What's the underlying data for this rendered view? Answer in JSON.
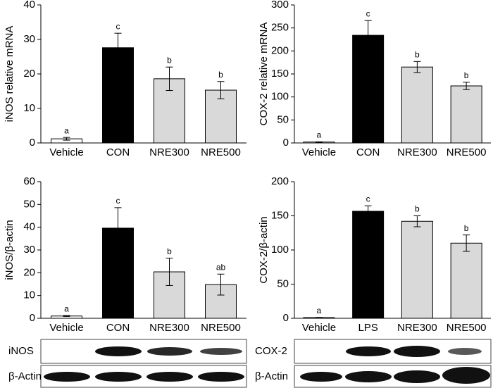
{
  "chart_data": [
    {
      "type": "bar",
      "ylabel": "iNOS relative mRNA",
      "categories": [
        "Vehicle",
        "CON",
        "NRE300",
        "NRE500"
      ],
      "values": [
        1.2,
        27.6,
        18.6,
        15.3
      ],
      "errors": [
        0.4,
        4.2,
        3.4,
        2.5
      ],
      "significance_labels": [
        "a",
        "c",
        "b",
        "b"
      ],
      "colors": [
        "#ffffff",
        "#000000",
        "#d9d9d9",
        "#d9d9d9"
      ],
      "ylim": [
        0,
        40
      ],
      "yticks": [
        0,
        10,
        20,
        30,
        40
      ]
    },
    {
      "type": "bar",
      "ylabel": "COX-2 relative mRNA",
      "categories": [
        "Vehicle",
        "CON",
        "NRE300",
        "NRE500"
      ],
      "values": [
        2,
        234,
        165,
        124
      ],
      "errors": [
        0.5,
        32,
        12,
        8
      ],
      "significance_labels": [
        "a",
        "c",
        "b",
        "b"
      ],
      "colors": [
        "#ffffff",
        "#000000",
        "#d9d9d9",
        "#d9d9d9"
      ],
      "ylim": [
        0,
        300
      ],
      "yticks": [
        0,
        50,
        100,
        150,
        200,
        250,
        300
      ]
    },
    {
      "type": "bar",
      "ylabel": "iNOS/β-actin",
      "categories": [
        "Vehicle",
        "CON",
        "NRE300",
        "NRE500"
      ],
      "values": [
        1,
        39.6,
        20.4,
        14.8
      ],
      "errors": [
        0.2,
        9,
        6,
        4.6
      ],
      "significance_labels": [
        "a",
        "c",
        "b",
        "ab"
      ],
      "colors": [
        "#ffffff",
        "#000000",
        "#d9d9d9",
        "#d9d9d9"
      ],
      "ylim": [
        0,
        60
      ],
      "yticks": [
        0,
        10,
        20,
        30,
        40,
        50,
        60
      ]
    },
    {
      "type": "bar",
      "ylabel": "COX-2/β-actin",
      "categories": [
        "Vehicle",
        "LPS",
        "NRE300",
        "NRE500"
      ],
      "values": [
        1,
        156.7,
        142,
        110
      ],
      "errors": [
        0.3,
        8,
        8,
        12
      ],
      "significance_labels": [
        "a",
        "c",
        "b",
        "b"
      ],
      "colors": [
        "#ffffff",
        "#000000",
        "#d9d9d9",
        "#d9d9d9"
      ],
      "ylim": [
        0,
        200
      ],
      "yticks": [
        0,
        50,
        100,
        150,
        200
      ]
    }
  ],
  "blots": [
    {
      "labels": [
        "iNOS",
        "β-Actin"
      ]
    },
    {
      "labels": [
        "COX-2",
        "β-Actin"
      ]
    }
  ]
}
